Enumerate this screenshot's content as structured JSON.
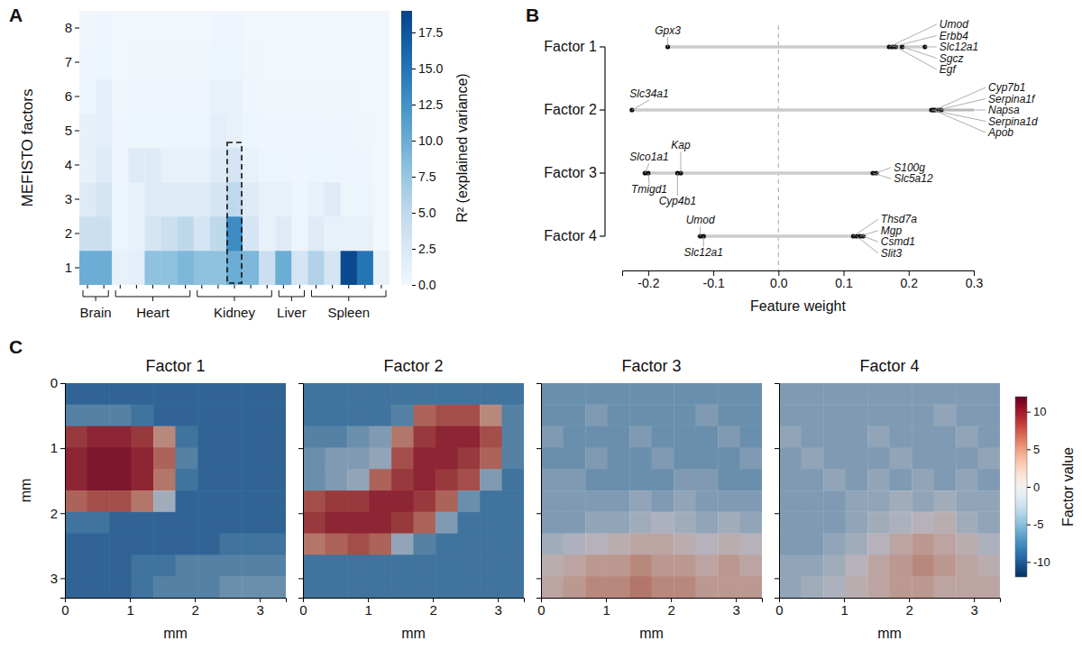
{
  "chart_data": [
    {
      "panel": "A",
      "type": "heatmap",
      "ylabel": "MEFISTO factors",
      "categories": [
        null,
        null,
        null,
        null,
        null,
        null,
        null,
        null,
        null,
        null,
        null,
        null,
        null,
        null,
        null,
        null,
        null,
        null,
        null
      ],
      "y": [
        1,
        2,
        3,
        4,
        5,
        6,
        7,
        8
      ],
      "groups": [
        {
          "label": "Brain",
          "columns": [
            0,
            1
          ]
        },
        {
          "label": "Heart",
          "columns": [
            2,
            6
          ]
        },
        {
          "label": "Kidney",
          "columns": [
            7,
            11
          ]
        },
        {
          "label": "Liver",
          "columns": [
            12,
            13
          ]
        },
        {
          "label": "Spleen",
          "columns": [
            14,
            18
          ]
        }
      ],
      "values": [
        [
          10,
          10,
          1,
          1.5,
          8,
          8,
          9,
          8,
          8,
          10,
          9,
          4,
          10,
          3,
          6,
          3,
          18.5,
          15,
          1
        ],
        [
          4,
          4,
          0.5,
          1,
          3,
          4,
          5,
          3,
          5,
          13,
          3,
          1,
          2,
          0.5,
          2,
          1,
          1,
          1,
          0
        ],
        [
          2,
          3,
          0.5,
          1,
          2,
          2,
          2,
          2,
          3,
          5,
          2,
          1,
          1,
          0.5,
          1,
          2,
          0.5,
          0.5,
          0
        ],
        [
          1,
          2,
          0.3,
          2,
          2,
          1,
          1,
          1,
          2,
          3,
          1,
          0.5,
          0.5,
          0.3,
          0.5,
          0.5,
          0.3,
          0.3,
          0
        ],
        [
          1,
          1.5,
          0.3,
          0.5,
          0.5,
          0.5,
          0.5,
          0.5,
          1.5,
          1,
          0.5,
          0.3,
          0.3,
          0.3,
          0.3,
          0.3,
          0.3,
          0.2,
          0
        ],
        [
          0.5,
          1.5,
          0.2,
          0.3,
          0.3,
          0.3,
          0.3,
          0.3,
          1,
          1,
          0.3,
          0.2,
          0.2,
          0.2,
          0.2,
          0.2,
          0.2,
          0.1,
          0
        ],
        [
          0.3,
          0.5,
          0.1,
          0.2,
          0.2,
          0.2,
          0.2,
          0.2,
          0.5,
          0.5,
          0.2,
          0.1,
          0.1,
          0.1,
          0.1,
          0.1,
          0.1,
          0.1,
          0
        ],
        [
          0.2,
          0.3,
          0.1,
          0.1,
          0.1,
          0.1,
          0.1,
          0.1,
          0.3,
          0.3,
          0.1,
          0.1,
          0.1,
          0.1,
          0.1,
          0.1,
          0.1,
          0.1,
          0
        ]
      ],
      "highlight": {
        "column": 9,
        "factors": [
          1,
          4
        ]
      },
      "colorbar": {
        "label": "R² (explained variance)",
        "range": [
          0,
          19
        ],
        "ticks": [
          {
            "value": 0,
            "label": "0.0"
          },
          2.5,
          {
            "value": 5,
            "label": "5.0"
          },
          7.5,
          {
            "value": 10,
            "label": "10.0"
          },
          12.5,
          {
            "value": 15,
            "label": "15.0"
          },
          17.5
        ]
      }
    },
    {
      "panel": "B",
      "type": "strip",
      "xlabel": "Feature weight",
      "xlim": [
        -0.24,
        0.3
      ],
      "xticks": [
        -0.2,
        -0.1,
        {
          "value": 0,
          "label": "0.0"
        },
        0.1,
        0.2,
        0.3
      ],
      "vline": 0,
      "series": [
        {
          "name": "Factor 1",
          "range": [
            -0.17,
            0.225
          ],
          "genes": [
            "Gpx3",
            "Umod",
            "Erbb4",
            "Slc12a1",
            "Sgcz",
            "Egf"
          ],
          "values": [
            -0.17,
            0.17,
            0.175,
            0.225,
            0.19,
            0.18
          ]
        },
        {
          "name": "Factor 2",
          "range": [
            -0.225,
            0.3
          ],
          "genes": [
            "Slc34a1",
            "Cyp7b1",
            "Serpina1f",
            "Napsa",
            "Serpina1d",
            "Apob"
          ],
          "values": [
            -0.225,
            0.24,
            0.245,
            0.25,
            0.235,
            0.238
          ]
        },
        {
          "name": "Factor 3",
          "range": [
            -0.205,
            0.155
          ],
          "genes": [
            "Slco1a1",
            "Kap",
            "Tmigd1",
            "Cyp4b1",
            "S100g",
            "Slc5a12"
          ],
          "values": [
            -0.205,
            -0.15,
            -0.2,
            -0.155,
            0.15,
            0.145
          ]
        },
        {
          "name": "Factor 4",
          "range": [
            -0.125,
            0.135
          ],
          "genes": [
            "Umod",
            "Slc12a1",
            "Thsd7a",
            "Mgp",
            "Csmd1",
            "Slit3"
          ],
          "values": [
            -0.12,
            -0.115,
            0.115,
            0.125,
            0.13,
            0.12
          ]
        }
      ]
    },
    {
      "panel": "C",
      "type": "spatial_heatmap",
      "xlabel": "mm",
      "ylabel": "mm",
      "xlim": [
        0,
        3.4
      ],
      "ylim": [
        0,
        3.3
      ],
      "xticks": [
        0,
        1,
        2,
        3
      ],
      "yticks": [
        0,
        1,
        2,
        3
      ],
      "panels": [
        {
          "title": "Factor 1",
          "values": [
            [
              -8,
              -8,
              -8,
              -8,
              -8,
              -8,
              -8,
              -8,
              -8,
              -8
            ],
            [
              -6,
              -6,
              -6,
              -7,
              -8,
              -8,
              -8,
              -8,
              -8,
              -8
            ],
            [
              8,
              9,
              9,
              8,
              4,
              -7,
              -8,
              -8,
              -8,
              -8
            ],
            [
              9,
              10,
              10,
              9,
              6,
              -6,
              -8,
              -8,
              -8,
              -8
            ],
            [
              9,
              10,
              10,
              9,
              5,
              -7,
              -8,
              -8,
              -8,
              -8
            ],
            [
              6,
              7,
              7,
              5,
              -2,
              -8,
              -8,
              -8,
              -8,
              -8
            ],
            [
              -7,
              -7,
              -8,
              -8,
              -8,
              -8,
              -8,
              -8,
              -8,
              -8
            ],
            [
              -8,
              -8,
              -8,
              -8,
              -8,
              -8,
              -8,
              -7,
              -7,
              -7
            ],
            [
              -8,
              -8,
              -8,
              -7,
              -7,
              -6,
              -6,
              -6,
              -6,
              -6
            ],
            [
              -8,
              -8,
              -8,
              -7,
              -6,
              -6,
              -6,
              -5,
              -5,
              -5
            ]
          ]
        },
        {
          "title": "Factor 2",
          "values": [
            [
              -7,
              -7,
              -7,
              -7,
              -7,
              -7,
              -7,
              -7,
              -7,
              -7
            ],
            [
              -7,
              -7,
              -7,
              -7,
              -6,
              6,
              7,
              7,
              4,
              -6
            ],
            [
              -6,
              -6,
              -5,
              -4,
              5,
              8,
              9,
              9,
              7,
              -6
            ],
            [
              -5,
              -4,
              -4,
              -3,
              7,
              9,
              9,
              8,
              6,
              -6
            ],
            [
              -5,
              -4,
              -3,
              6,
              8,
              9,
              8,
              7,
              -4,
              -7
            ],
            [
              7,
              8,
              8,
              9,
              9,
              8,
              6,
              -5,
              -7,
              -7
            ],
            [
              8,
              9,
              9,
              9,
              8,
              6,
              -4,
              -7,
              -7,
              -7
            ],
            [
              5,
              6,
              7,
              6,
              -3,
              -6,
              -7,
              -7,
              -7,
              -7
            ],
            [
              -7,
              -7,
              -7,
              -7,
              -7,
              -7,
              -7,
              -7,
              -7,
              -7
            ],
            [
              -7,
              -7,
              -7,
              -7,
              -7,
              -7,
              -7,
              -7,
              -7,
              -7
            ]
          ]
        },
        {
          "title": "Factor 3",
          "values": [
            [
              -5,
              -5,
              -5,
              -5,
              -5,
              -5,
              -5,
              -5,
              -5,
              -5
            ],
            [
              -5,
              -5,
              -4,
              -5,
              -5,
              -5,
              -5,
              -4,
              -5,
              -5
            ],
            [
              -4,
              -5,
              -5,
              -5,
              -4,
              -5,
              -5,
              -5,
              -4,
              -5
            ],
            [
              -5,
              -5,
              -4,
              -5,
              -5,
              -4,
              -5,
              -5,
              -5,
              -4
            ],
            [
              -4,
              -4,
              -5,
              -5,
              -5,
              -5,
              -4,
              -4,
              -5,
              -5
            ],
            [
              -4,
              -4,
              -4,
              -4,
              -3,
              -4,
              -3,
              -4,
              -4,
              -4
            ],
            [
              -4,
              -4,
              -3,
              -3,
              -2,
              -1,
              -2,
              -3,
              -2,
              -3
            ],
            [
              -2,
              -1,
              0,
              1,
              2,
              2,
              1,
              0,
              1,
              0
            ],
            [
              1,
              2,
              3,
              3,
              4,
              3,
              3,
              2,
              3,
              2
            ],
            [
              2,
              3,
              4,
              4,
              5,
              4,
              4,
              3,
              3,
              3
            ]
          ]
        },
        {
          "title": "Factor 4",
          "values": [
            [
              -4,
              -4,
              -4,
              -4,
              -4,
              -4,
              -4,
              -4,
              -4,
              -4
            ],
            [
              -4,
              -4,
              -4,
              -4,
              -4,
              -4,
              -4,
              -3,
              -4,
              -4
            ],
            [
              -3,
              -4,
              -4,
              -4,
              -3,
              -4,
              -4,
              -4,
              -3,
              -4
            ],
            [
              -4,
              -3,
              -4,
              -4,
              -4,
              -3,
              -4,
              -4,
              -4,
              -3
            ],
            [
              -4,
              -4,
              -3,
              -4,
              -3,
              -4,
              -3,
              -4,
              -3,
              -4
            ],
            [
              -4,
              -4,
              -4,
              -3,
              -3,
              -2,
              -3,
              -2,
              -3,
              -3
            ],
            [
              -4,
              -4,
              -4,
              -3,
              -2,
              -1,
              0,
              1,
              -2,
              -3
            ],
            [
              -4,
              -4,
              -3,
              -2,
              0,
              2,
              3,
              2,
              1,
              -1
            ],
            [
              -3,
              -3,
              -2,
              0,
              2,
              3,
              4,
              3,
              2,
              1
            ],
            [
              -3,
              -2,
              -1,
              1,
              2,
              3,
              3,
              2,
              2,
              2
            ]
          ]
        }
      ],
      "colorbar": {
        "label": "Factor value",
        "range": [
          -12,
          12
        ],
        "ticks": [
          -10,
          -5,
          0,
          5,
          10
        ]
      }
    }
  ]
}
